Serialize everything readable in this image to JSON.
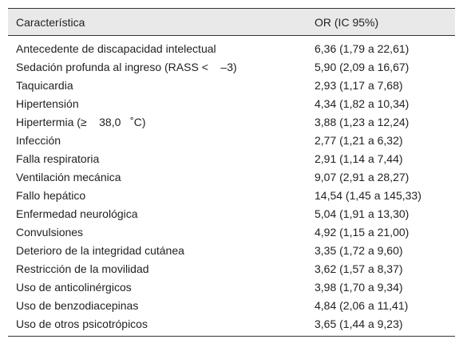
{
  "table": {
    "header": [
      "Característica",
      "OR (IC 95%)"
    ],
    "rows": [
      [
        "Antecedente de discapacidad intelectual",
        "6,36 (1,79 a 22,61)"
      ],
      [
        "Sedación profunda al ingreso (RASS <    –3)",
        "5,90 (2,09 a 16,67)"
      ],
      [
        "Taquicardia",
        "2,93 (1,17 a 7,68)"
      ],
      [
        "Hipertensión",
        "4,34 (1,82 a 10,34)"
      ],
      [
        "Hipertermia (≥    38,0   ˚C)",
        "3,88 (1,23 a 12,24)"
      ],
      [
        "Infección",
        "2,77 (1,21 a 6,32)"
      ],
      [
        "Falla respiratoria",
        "2,91 (1,14 a 7,44)"
      ],
      [
        "Ventilación mecánica",
        "9,07 (2,91 a 28,27)"
      ],
      [
        "Fallo hepático",
        "14,54 (1,45 a 145,33)"
      ],
      [
        "Enfermedad neurológica",
        "5,04 (1,91 a 13,30)"
      ],
      [
        "Convulsiones",
        "4,92 (1,15 a 21,00)"
      ],
      [
        "Deterioro de la integridad cutánea",
        "3,35 (1,72 a 9,60)"
      ],
      [
        "Restricción de la movilidad",
        "3,62 (1,57 a 8,37)"
      ],
      [
        "Uso de anticolinérgicos",
        "3,98 (1,70 a 9,34)"
      ],
      [
        "Uso de benzodiacepinas",
        "4,84 (2,06 a 11,41)"
      ],
      [
        "Uso de otros psicotrópicos",
        "3,65 (1,44 a 9,23)"
      ]
    ]
  }
}
